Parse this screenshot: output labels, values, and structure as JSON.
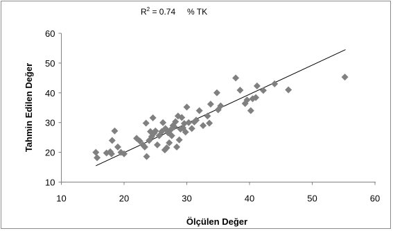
{
  "chart_data": {
    "type": "scatter",
    "annotation": {
      "r2_label": "R",
      "r2_exp": "2",
      "r2_value": " = 0.74",
      "unit": "% TK"
    },
    "xlabel": "Ölçülen Değer",
    "ylabel": "Tahmin Edilen Değer",
    "xlim": [
      10,
      60
    ],
    "ylim": [
      10,
      60
    ],
    "xticks": [
      "10",
      "20",
      "30",
      "40",
      "50",
      "60"
    ],
    "yticks": [
      "10",
      "20",
      "30",
      "40",
      "50",
      "60"
    ],
    "grid": false,
    "marker_color": "#808080",
    "trendline": {
      "x": [
        15.5,
        55.3
      ],
      "y": [
        15.5,
        54.5
      ]
    },
    "points": [
      [
        15.5,
        20.0
      ],
      [
        15.7,
        18.2
      ],
      [
        17.2,
        19.8
      ],
      [
        17.8,
        20.2
      ],
      [
        18.0,
        19.5
      ],
      [
        18.1,
        24.0
      ],
      [
        18.5,
        27.2
      ],
      [
        19.0,
        21.8
      ],
      [
        19.5,
        20.0
      ],
      [
        20.0,
        19.5
      ],
      [
        22.0,
        24.7
      ],
      [
        22.5,
        23.8
      ],
      [
        23.0,
        22.5
      ],
      [
        23.3,
        21.8
      ],
      [
        23.5,
        29.8
      ],
      [
        23.6,
        18.6
      ],
      [
        24.0,
        24.0
      ],
      [
        24.2,
        27.0
      ],
      [
        24.4,
        25.3
      ],
      [
        24.6,
        31.6
      ],
      [
        24.8,
        26.5
      ],
      [
        25.0,
        27.2
      ],
      [
        25.3,
        22.5
      ],
      [
        25.6,
        25.6
      ],
      [
        26.0,
        27.0
      ],
      [
        26.2,
        30.0
      ],
      [
        26.5,
        20.8
      ],
      [
        26.6,
        28.0
      ],
      [
        26.8,
        21.5
      ],
      [
        27.0,
        26.6
      ],
      [
        27.2,
        23.2
      ],
      [
        27.4,
        27.5
      ],
      [
        27.6,
        25.6
      ],
      [
        27.8,
        29.0
      ],
      [
        28.0,
        28.6
      ],
      [
        28.2,
        30.3
      ],
      [
        28.4,
        21.8
      ],
      [
        28.6,
        32.2
      ],
      [
        28.8,
        24.2
      ],
      [
        29.0,
        27.8
      ],
      [
        29.2,
        31.7
      ],
      [
        29.4,
        28.2
      ],
      [
        29.6,
        29.7
      ],
      [
        29.8,
        26.8
      ],
      [
        30.0,
        35.2
      ],
      [
        30.3,
        30.0
      ],
      [
        30.8,
        28.0
      ],
      [
        31.2,
        30.2
      ],
      [
        31.5,
        30.8
      ],
      [
        32.0,
        34.0
      ],
      [
        32.6,
        29.0
      ],
      [
        33.3,
        32.2
      ],
      [
        33.6,
        29.8
      ],
      [
        33.8,
        36.2
      ],
      [
        34.8,
        40.0
      ],
      [
        35.0,
        34.3
      ],
      [
        35.4,
        35.6
      ],
      [
        37.8,
        45.0
      ],
      [
        38.5,
        40.9
      ],
      [
        39.3,
        36.4
      ],
      [
        39.6,
        37.6
      ],
      [
        40.2,
        34.0
      ],
      [
        40.5,
        38.0
      ],
      [
        41.0,
        38.4
      ],
      [
        41.2,
        42.3
      ],
      [
        42.2,
        40.8
      ],
      [
        44.0,
        43.0
      ],
      [
        46.2,
        41.0
      ],
      [
        55.2,
        45.3
      ]
    ]
  }
}
